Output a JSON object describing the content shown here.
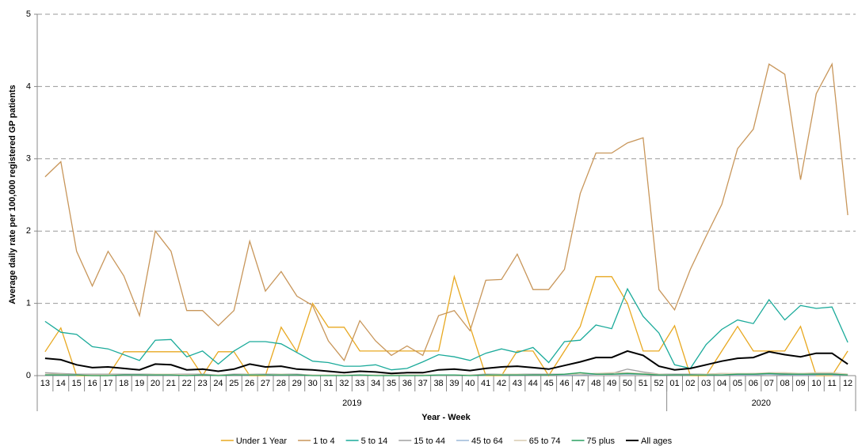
{
  "chart_data": {
    "type": "line",
    "ylabel": "Average daily rate per 100,000 registered GP patients",
    "xlabel": "Year - Week",
    "categories": [
      "13",
      "14",
      "15",
      "16",
      "17",
      "18",
      "19",
      "20",
      "21",
      "22",
      "23",
      "24",
      "25",
      "26",
      "27",
      "28",
      "29",
      "30",
      "31",
      "32",
      "33",
      "34",
      "35",
      "36",
      "37",
      "38",
      "39",
      "40",
      "41",
      "42",
      "43",
      "44",
      "45",
      "46",
      "47",
      "48",
      "49",
      "50",
      "51",
      "52",
      "01",
      "02",
      "03",
      "04",
      "05",
      "06",
      "07",
      "08",
      "09",
      "10",
      "11",
      "12"
    ],
    "x_groups": [
      {
        "label": "2019",
        "span": 40
      },
      {
        "label": "2020",
        "span": 12
      }
    ],
    "ylim": [
      0,
      5
    ],
    "yticks": [
      0,
      1,
      2,
      3,
      4,
      5
    ],
    "grid": true,
    "series": [
      {
        "name": "Under 1 Year",
        "color": "#e8a820",
        "values": [
          0.33,
          0.66,
          0,
          0,
          0,
          0.33,
          0.33,
          0.33,
          0.33,
          0.33,
          0,
          0.33,
          0.33,
          0,
          0,
          0.67,
          0.33,
          1.0,
          0.67,
          0.67,
          0.34,
          0.34,
          0.34,
          0.34,
          0.34,
          0.34,
          1.37,
          0.68,
          0,
          0,
          0.34,
          0.34,
          0,
          0.34,
          0.68,
          1.37,
          1.37,
          1.0,
          0.34,
          0.34,
          0.69,
          0,
          0,
          0.34,
          0.68,
          0.34,
          0.34,
          0.34,
          0.68,
          0,
          0,
          0.34
        ]
      },
      {
        "name": "1 to 4",
        "color": "#c8965a",
        "values": [
          2.75,
          2.96,
          1.72,
          1.24,
          1.72,
          1.38,
          0.83,
          2.0,
          1.72,
          0.9,
          0.9,
          0.69,
          0.9,
          1.86,
          1.17,
          1.44,
          1.1,
          0.97,
          0.48,
          0.21,
          0.76,
          0.48,
          0.28,
          0.41,
          0.28,
          0.83,
          0.9,
          0.62,
          1.32,
          1.33,
          1.68,
          1.19,
          1.19,
          1.47,
          2.52,
          3.08,
          3.08,
          3.22,
          3.29,
          1.19,
          0.91,
          1.47,
          1.93,
          2.37,
          3.14,
          3.41,
          4.31,
          4.17,
          2.71,
          3.9,
          4.31,
          2.22
        ]
      },
      {
        "name": "5 to 14",
        "color": "#1aaa9a",
        "values": [
          0.75,
          0.6,
          0.57,
          0.4,
          0.37,
          0.29,
          0.21,
          0.49,
          0.5,
          0.26,
          0.34,
          0.16,
          0.34,
          0.47,
          0.47,
          0.44,
          0.32,
          0.2,
          0.18,
          0.13,
          0.13,
          0.15,
          0.08,
          0.1,
          0.19,
          0.29,
          0.26,
          0.21,
          0.31,
          0.37,
          0.32,
          0.39,
          0.18,
          0.47,
          0.49,
          0.7,
          0.65,
          1.2,
          0.82,
          0.59,
          0.15,
          0.1,
          0.43,
          0.64,
          0.77,
          0.72,
          1.05,
          0.77,
          0.97,
          0.93,
          0.95,
          0.46
        ]
      },
      {
        "name": "15 to 44",
        "color": "#a0a0a0",
        "values": [
          0.04,
          0.03,
          0.02,
          0.02,
          0.02,
          0.02,
          0.02,
          0.02,
          0.02,
          0.02,
          0.02,
          0.01,
          0.02,
          0.02,
          0.02,
          0.02,
          0.02,
          0.01,
          0.01,
          0.01,
          0.01,
          0.01,
          0.01,
          0.01,
          0.01,
          0.01,
          0.01,
          0.01,
          0.02,
          0.02,
          0.02,
          0.02,
          0.02,
          0.02,
          0.02,
          0.03,
          0.03,
          0.09,
          0.05,
          0.02,
          0.02,
          0.02,
          0.02,
          0.03,
          0.02,
          0.03,
          0.03,
          0.03,
          0.03,
          0.03,
          0.03,
          0.02
        ]
      },
      {
        "name": "45 to 64",
        "color": "#9ab8d8",
        "values": [
          0.01,
          0.01,
          0.01,
          0.01,
          0.01,
          0.01,
          0.01,
          0.01,
          0.01,
          0.01,
          0.01,
          0.01,
          0.01,
          0.01,
          0.01,
          0.01,
          0.01,
          0.01,
          0.01,
          0.01,
          0.01,
          0.01,
          0.01,
          0.01,
          0.01,
          0.01,
          0.01,
          0.01,
          0.01,
          0.01,
          0.01,
          0.01,
          0.01,
          0.01,
          0.01,
          0.02,
          0.02,
          0.02,
          0.02,
          0.01,
          0.01,
          0.01,
          0.01,
          0.01,
          0.01,
          0.01,
          0.02,
          0.01,
          0.01,
          0.01,
          0.01,
          0.01
        ]
      },
      {
        "name": "65 to 74",
        "color": "#d8ccb0",
        "values": [
          0.02,
          0.02,
          0.01,
          0.01,
          0.01,
          0.01,
          0.01,
          0.02,
          0.02,
          0.01,
          0.01,
          0.01,
          0.01,
          0.02,
          0.01,
          0.02,
          0.01,
          0.01,
          0.01,
          0.01,
          0.01,
          0.01,
          0.01,
          0.01,
          0.01,
          0.01,
          0.01,
          0.01,
          0.01,
          0.02,
          0.02,
          0.01,
          0.01,
          0.02,
          0.02,
          0.03,
          0.04,
          0.04,
          0.03,
          0.02,
          0.01,
          0.01,
          0.02,
          0.03,
          0.03,
          0.03,
          0.04,
          0.04,
          0.03,
          0.04,
          0.04,
          0.02
        ]
      },
      {
        "name": "75 plus",
        "color": "#2aa060",
        "values": [
          0.01,
          0.01,
          0.01,
          0,
          0,
          0.01,
          0.01,
          0.01,
          0.01,
          0,
          0.01,
          0,
          0.01,
          0.01,
          0.01,
          0.01,
          0.01,
          0,
          0,
          0,
          0.01,
          0,
          0,
          0,
          0,
          0.01,
          0.01,
          0,
          0.01,
          0.01,
          0.01,
          0.01,
          0.01,
          0.02,
          0.04,
          0.02,
          0.02,
          0.03,
          0.02,
          0.01,
          0.01,
          0.01,
          0.01,
          0.01,
          0.02,
          0.02,
          0.03,
          0.02,
          0.02,
          0.02,
          0.02,
          0.01
        ]
      },
      {
        "name": "All ages",
        "color": "#000000",
        "values": [
          0.24,
          0.22,
          0.15,
          0.11,
          0.12,
          0.1,
          0.08,
          0.16,
          0.15,
          0.08,
          0.09,
          0.06,
          0.09,
          0.16,
          0.12,
          0.13,
          0.09,
          0.08,
          0.06,
          0.04,
          0.06,
          0.05,
          0.03,
          0.04,
          0.04,
          0.08,
          0.09,
          0.07,
          0.1,
          0.12,
          0.13,
          0.11,
          0.09,
          0.14,
          0.19,
          0.25,
          0.25,
          0.34,
          0.28,
          0.13,
          0.08,
          0.1,
          0.15,
          0.2,
          0.24,
          0.25,
          0.33,
          0.29,
          0.26,
          0.31,
          0.31,
          0.16
        ]
      }
    ]
  }
}
